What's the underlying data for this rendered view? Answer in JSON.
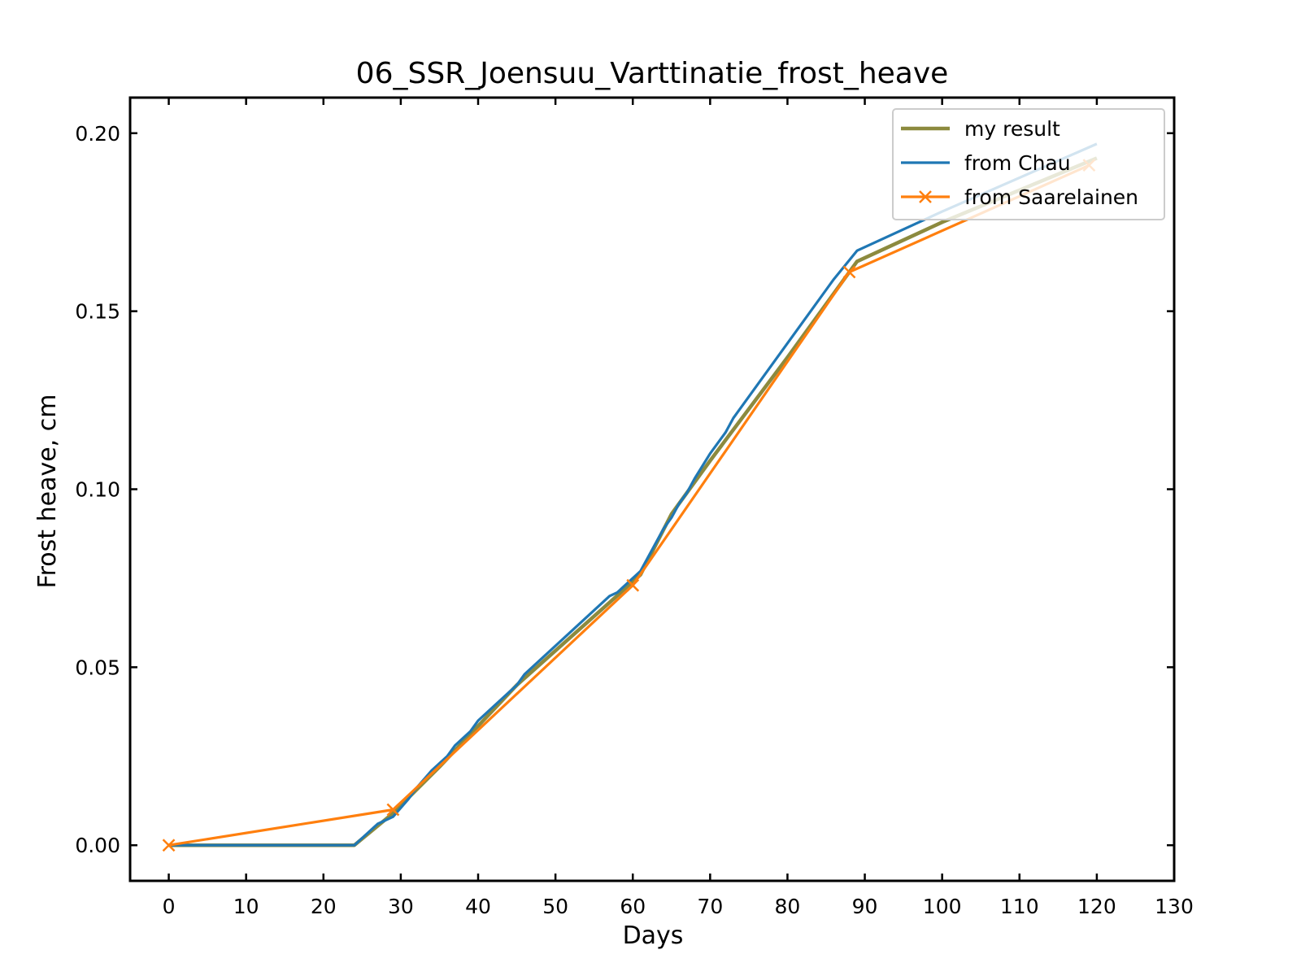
{
  "chart_data": {
    "type": "line",
    "title": "06_SSR_Joensuu_Varttinatie_frost_heave",
    "xlabel": "Days",
    "ylabel": "Frost heave, cm",
    "xlim": [
      -5,
      130
    ],
    "ylim": [
      -0.01,
      0.21
    ],
    "xticks": [
      0,
      10,
      20,
      30,
      40,
      50,
      60,
      70,
      80,
      90,
      100,
      110,
      120,
      130
    ],
    "xtick_labels": [
      "0",
      "10",
      "20",
      "30",
      "40",
      "50",
      "60",
      "70",
      "80",
      "90",
      "100",
      "110",
      "120",
      "130"
    ],
    "yticks": [
      0.0,
      0.05,
      0.1,
      0.15,
      0.2
    ],
    "ytick_labels": [
      "0.00",
      "0.05",
      "0.10",
      "0.15",
      "0.20"
    ],
    "grid": false,
    "legend_position": "top-right",
    "series": [
      {
        "name": "my result",
        "color": "#8c8a3e",
        "marker": "none",
        "x": [
          0,
          24,
          29,
          35,
          45,
          60,
          61,
          65,
          70,
          80,
          89,
          100,
          120
        ],
        "y": [
          0,
          0,
          0.009,
          0.022,
          0.045,
          0.074,
          0.076,
          0.093,
          0.108,
          0.137,
          0.164,
          0.175,
          0.193
        ]
      },
      {
        "name": "from Chau",
        "color": "#1f77b4",
        "marker": "none",
        "x": [
          0,
          24,
          25,
          27,
          29,
          31,
          32,
          34,
          36,
          37,
          39,
          40,
          45,
          46,
          57,
          58,
          61,
          64,
          65,
          66,
          67,
          68,
          70,
          72,
          73,
          86,
          89,
          100,
          120
        ],
        "y": [
          0,
          0,
          0.002,
          0.006,
          0.008,
          0.013,
          0.016,
          0.021,
          0.025,
          0.028,
          0.032,
          0.035,
          0.045,
          0.048,
          0.07,
          0.071,
          0.077,
          0.089,
          0.092,
          0.096,
          0.099,
          0.103,
          0.11,
          0.116,
          0.12,
          0.159,
          0.167,
          0.178,
          0.197
        ]
      },
      {
        "name": "from Saarelainen",
        "color": "#ff7f0e",
        "marker": "x",
        "x": [
          0,
          29,
          60,
          88,
          119
        ],
        "y": [
          0,
          0.01,
          0.073,
          0.161,
          0.191
        ]
      }
    ]
  }
}
